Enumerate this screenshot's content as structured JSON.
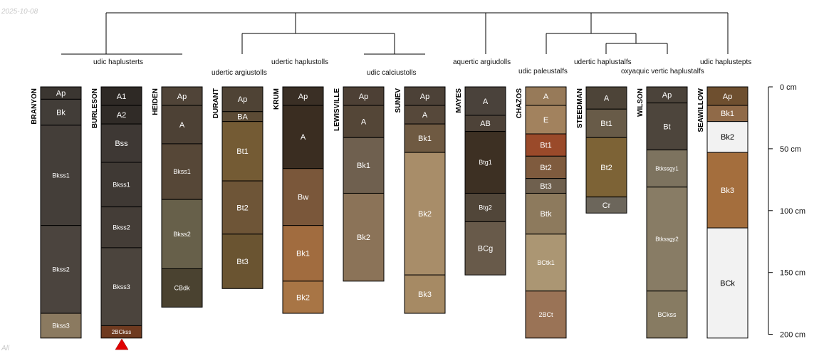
{
  "date_label": "2025-10-08",
  "corner_label": "All",
  "chart_data": {
    "type": "soil-profile-sketch",
    "depth_unit": "cm",
    "depth_range": [
      0,
      200
    ],
    "depth_ticks": [
      "0 cm",
      "50 cm",
      "100 cm",
      "150 cm",
      "200 cm"
    ],
    "taxa": [
      "udic haplusterts",
      "udertic argiustolls",
      "udertic haplustolls",
      "udic calciustolls",
      "aquertic argiudolls",
      "udic paleustalfs",
      "udertic haplustalfs",
      "oxyaquic vertic haplustalfs",
      "udic haplustepts"
    ],
    "profiles": [
      {
        "name": "BRANYON",
        "horizons": [
          {
            "name": "Ap",
            "top": 0,
            "bottom": 10,
            "color": "#3b3631"
          },
          {
            "name": "Bk",
            "top": 10,
            "bottom": 31,
            "color": "#423d38"
          },
          {
            "name": "Bkss1",
            "top": 31,
            "bottom": 112,
            "color": "#443e39"
          },
          {
            "name": "Bkss2",
            "top": 112,
            "bottom": 183,
            "color": "#4b443e"
          },
          {
            "name": "Bkss3",
            "top": 183,
            "bottom": 203,
            "color": "#8b7a60"
          }
        ]
      },
      {
        "name": "BURLESON",
        "horizons": [
          {
            "name": "A1",
            "top": 0,
            "bottom": 15,
            "color": "#2e2925"
          },
          {
            "name": "A2",
            "top": 15,
            "bottom": 30,
            "color": "#302b27"
          },
          {
            "name": "Bss",
            "top": 30,
            "bottom": 61,
            "color": "#3e3834"
          },
          {
            "name": "Bkss1",
            "top": 61,
            "bottom": 97,
            "color": "#3f3934"
          },
          {
            "name": "Bkss2",
            "top": 97,
            "bottom": 130,
            "color": "#443d37"
          },
          {
            "name": "Bkss3",
            "top": 130,
            "bottom": 193,
            "color": "#4b443d"
          },
          {
            "name": "2BCkss",
            "top": 193,
            "bottom": 203,
            "color": "#6e3a20"
          }
        ]
      },
      {
        "name": "HEIDEN",
        "horizons": [
          {
            "name": "Ap",
            "top": 0,
            "bottom": 15,
            "color": "#504438"
          },
          {
            "name": "A",
            "top": 15,
            "bottom": 46,
            "color": "#4d4135"
          },
          {
            "name": "Bkss1",
            "top": 46,
            "bottom": 91,
            "color": "#564737"
          },
          {
            "name": "Bkss2",
            "top": 91,
            "bottom": 147,
            "color": "#67604a"
          },
          {
            "name": "CBdk",
            "top": 147,
            "bottom": 178,
            "color": "#4a4230"
          }
        ]
      },
      {
        "name": "DURANT",
        "horizons": [
          {
            "name": "Ap",
            "top": 0,
            "bottom": 20,
            "color": "#4f4335"
          },
          {
            "name": "BA",
            "top": 20,
            "bottom": 28,
            "color": "#5c4b35"
          },
          {
            "name": "Bt1",
            "top": 28,
            "bottom": 76,
            "color": "#745b34"
          },
          {
            "name": "Bt2",
            "top": 76,
            "bottom": 119,
            "color": "#6e5537"
          },
          {
            "name": "Bt3",
            "top": 119,
            "bottom": 163,
            "color": "#6a5431"
          }
        ]
      },
      {
        "name": "KRUM",
        "horizons": [
          {
            "name": "Ap",
            "top": 0,
            "bottom": 15,
            "color": "#3a2f25"
          },
          {
            "name": "A",
            "top": 15,
            "bottom": 66,
            "color": "#3a2d21"
          },
          {
            "name": "Bw",
            "top": 66,
            "bottom": 112,
            "color": "#7a573a"
          },
          {
            "name": "Bk1",
            "top": 112,
            "bottom": 157,
            "color": "#a16c3f"
          },
          {
            "name": "Bk2",
            "top": 157,
            "bottom": 183,
            "color": "#a87545"
          }
        ]
      },
      {
        "name": "LEWISVILLE",
        "horizons": [
          {
            "name": "Ap",
            "top": 0,
            "bottom": 15,
            "color": "#4d4035"
          },
          {
            "name": "A",
            "top": 15,
            "bottom": 41,
            "color": "#544637"
          },
          {
            "name": "Bk1",
            "top": 41,
            "bottom": 86,
            "color": "#6f604f"
          },
          {
            "name": "Bk2",
            "top": 86,
            "bottom": 157,
            "color": "#8b7358"
          }
        ]
      },
      {
        "name": "SUNEV",
        "horizons": [
          {
            "name": "Ap",
            "top": 0,
            "bottom": 15,
            "color": "#4c4137"
          },
          {
            "name": "A",
            "top": 15,
            "bottom": 30,
            "color": "#56483a"
          },
          {
            "name": "Bk1",
            "top": 30,
            "bottom": 53,
            "color": "#6f5a42"
          },
          {
            "name": "Bk2",
            "top": 53,
            "bottom": 152,
            "color": "#a88d69"
          },
          {
            "name": "Bk3",
            "top": 152,
            "bottom": 183,
            "color": "#a68a64"
          }
        ]
      },
      {
        "name": "MAYES",
        "horizons": [
          {
            "name": "A",
            "top": 0,
            "bottom": 23,
            "color": "#4a423b"
          },
          {
            "name": "AB",
            "top": 23,
            "bottom": 36,
            "color": "#4d4238"
          },
          {
            "name": "Btg1",
            "top": 36,
            "bottom": 86,
            "color": "#3d3023"
          },
          {
            "name": "Btg2",
            "top": 86,
            "bottom": 109,
            "color": "#514639"
          },
          {
            "name": "BCg",
            "top": 109,
            "bottom": 152,
            "color": "#685a4a"
          }
        ]
      },
      {
        "name": "CHAZOS",
        "horizons": [
          {
            "name": "A",
            "top": 0,
            "bottom": 15,
            "color": "#977a59"
          },
          {
            "name": "E",
            "top": 15,
            "bottom": 38,
            "color": "#a2825e"
          },
          {
            "name": "Bt1",
            "top": 38,
            "bottom": 56,
            "color": "#9a4a2a"
          },
          {
            "name": "Bt2",
            "top": 56,
            "bottom": 74,
            "color": "#7f5b3e"
          },
          {
            "name": "Bt3",
            "top": 74,
            "bottom": 86,
            "color": "#6f604e"
          },
          {
            "name": "Btk",
            "top": 86,
            "bottom": 119,
            "color": "#8d7a5d"
          },
          {
            "name": "BCtk1",
            "top": 119,
            "bottom": 165,
            "color": "#ab9673"
          },
          {
            "name": "2BCt",
            "top": 165,
            "bottom": 203,
            "color": "#9a7356"
          }
        ]
      },
      {
        "name": "STEEDMAN",
        "horizons": [
          {
            "name": "A",
            "top": 0,
            "bottom": 18,
            "color": "#4d4438"
          },
          {
            "name": "Bt1",
            "top": 18,
            "bottom": 41,
            "color": "#685b48"
          },
          {
            "name": "Bt2",
            "top": 41,
            "bottom": 89,
            "color": "#7d6336"
          },
          {
            "name": "Cr",
            "top": 89,
            "bottom": 102,
            "color": "#6c665b"
          }
        ]
      },
      {
        "name": "WILSON",
        "horizons": [
          {
            "name": "Ap",
            "top": 0,
            "bottom": 13,
            "color": "#4b433a"
          },
          {
            "name": "Bt",
            "top": 13,
            "bottom": 51,
            "color": "#4d453c"
          },
          {
            "name": "Btkssgy1",
            "top": 51,
            "bottom": 81,
            "color": "#7d735f"
          },
          {
            "name": "Btkssgy2",
            "top": 81,
            "bottom": 165,
            "color": "#887c65"
          },
          {
            "name": "BCkss",
            "top": 165,
            "bottom": 203,
            "color": "#877b62"
          }
        ]
      },
      {
        "name": "SEAWILLOW",
        "horizons": [
          {
            "name": "Ap",
            "top": 0,
            "bottom": 15,
            "color": "#6e4f2f"
          },
          {
            "name": "Bk1",
            "top": 15,
            "bottom": 28,
            "color": "#906a48"
          },
          {
            "name": "Bk2",
            "top": 28,
            "bottom": 53,
            "color": "#f2f2f2"
          },
          {
            "name": "Bk3",
            "top": 53,
            "bottom": 114,
            "color": "#a46e3d"
          },
          {
            "name": "BCk",
            "top": 114,
            "bottom": 203,
            "color": "#f2f2f2"
          }
        ]
      }
    ]
  }
}
